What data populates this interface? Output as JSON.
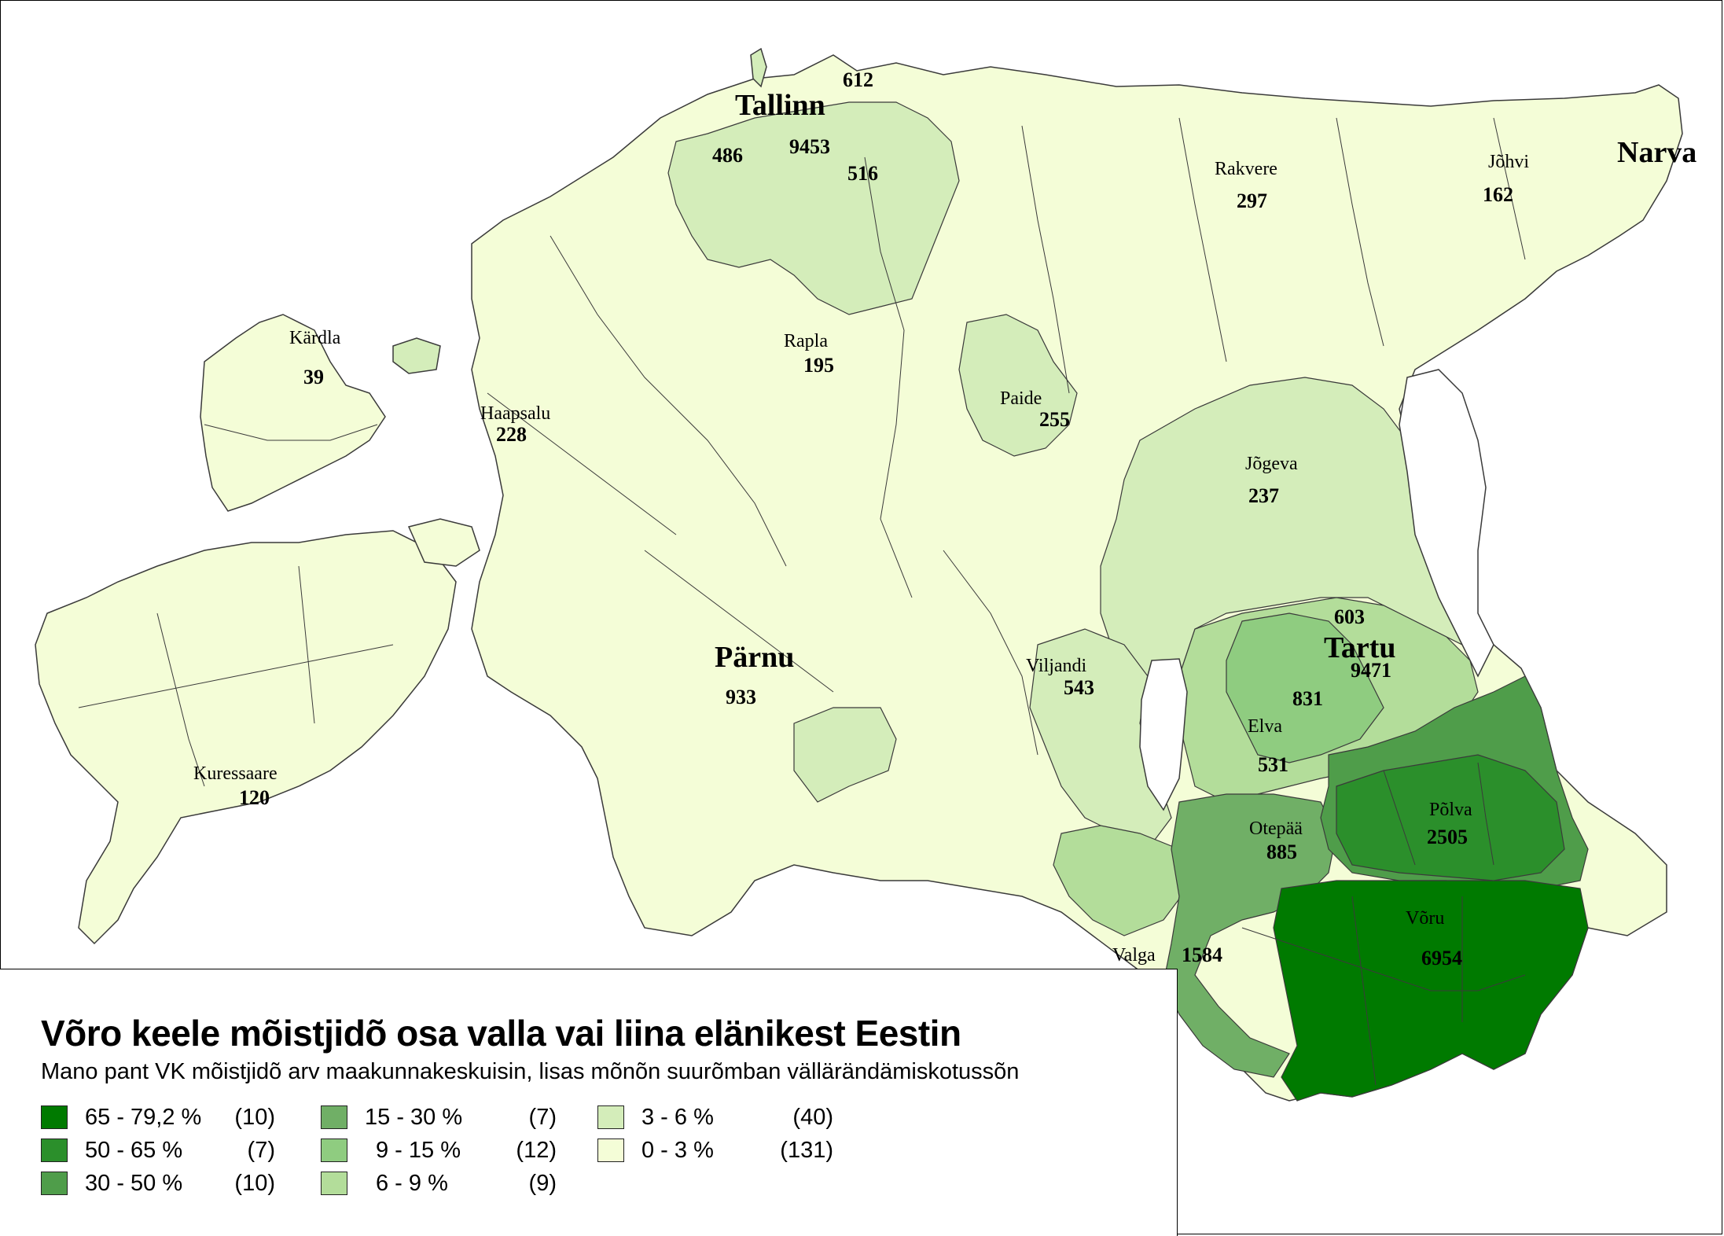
{
  "title": "Võro keele mõistjidõ osa valla vai liina elänikest Eestin",
  "subtitle": "Mano pant VK mõistjidõ arv maakunnakeskuisin, lisas mõnõn suurõmban vällärändämiskotussõn",
  "legend": [
    {
      "range": "65 - 79,2 %",
      "count": "(10)",
      "color": "#007a00"
    },
    {
      "range": "50 - 65 %",
      "count": "(7)",
      "color": "#2b8f2b"
    },
    {
      "range": "30 - 50 %",
      "count": "(10)",
      "color": "#4f9d4a"
    },
    {
      "range": "15 - 30 %",
      "count": "(7)",
      "color": "#70af66"
    },
    {
      "range": "9 - 15 %",
      "count": "(12)",
      "color": "#8fcc80"
    },
    {
      "range": "6 - 9 %",
      "count": "(9)",
      "color": "#b3dd9a"
    },
    {
      "range": "3 - 6 %",
      "count": "(40)",
      "color": "#d4edba"
    },
    {
      "range": "0 - 3 %",
      "count": "(131)",
      "color": "#f4fdd7"
    }
  ],
  "labels": [
    {
      "name": "Tallinn",
      "count": "9453",
      "style": "big"
    },
    {
      "name": "",
      "count": "612",
      "style": "small"
    },
    {
      "name": "",
      "count": "486",
      "style": "small"
    },
    {
      "name": "",
      "count": "516",
      "style": "small"
    },
    {
      "name": "Rakvere",
      "count": "297",
      "style": "small"
    },
    {
      "name": "Jõhvi",
      "count": "162",
      "style": "small"
    },
    {
      "name": "Narva",
      "count": "",
      "style": "big"
    },
    {
      "name": "Kärdla",
      "count": "39",
      "style": "small"
    },
    {
      "name": "Haapsalu",
      "count": "228",
      "style": "small"
    },
    {
      "name": "Rapla",
      "count": "195",
      "style": "small"
    },
    {
      "name": "Paide",
      "count": "255",
      "style": "small"
    },
    {
      "name": "Jõgeva",
      "count": "237",
      "style": "small"
    },
    {
      "name": "",
      "count": "603",
      "style": "small"
    },
    {
      "name": "Tartu",
      "count": "9471",
      "style": "big"
    },
    {
      "name": "",
      "count": "831",
      "style": "small"
    },
    {
      "name": "Elva",
      "count": "531",
      "style": "small"
    },
    {
      "name": "Viljandi",
      "count": "543",
      "style": "small"
    },
    {
      "name": "Pärnu",
      "count": "933",
      "style": "big"
    },
    {
      "name": "Kuressaare",
      "count": "120",
      "style": "small"
    },
    {
      "name": "Otepää",
      "count": "885",
      "style": "small"
    },
    {
      "name": "Põlva",
      "count": "2505",
      "style": "small"
    },
    {
      "name": "Võru",
      "count": "6954",
      "style": "small"
    },
    {
      "name": "Valga",
      "count": "1584",
      "style": "small"
    }
  ]
}
